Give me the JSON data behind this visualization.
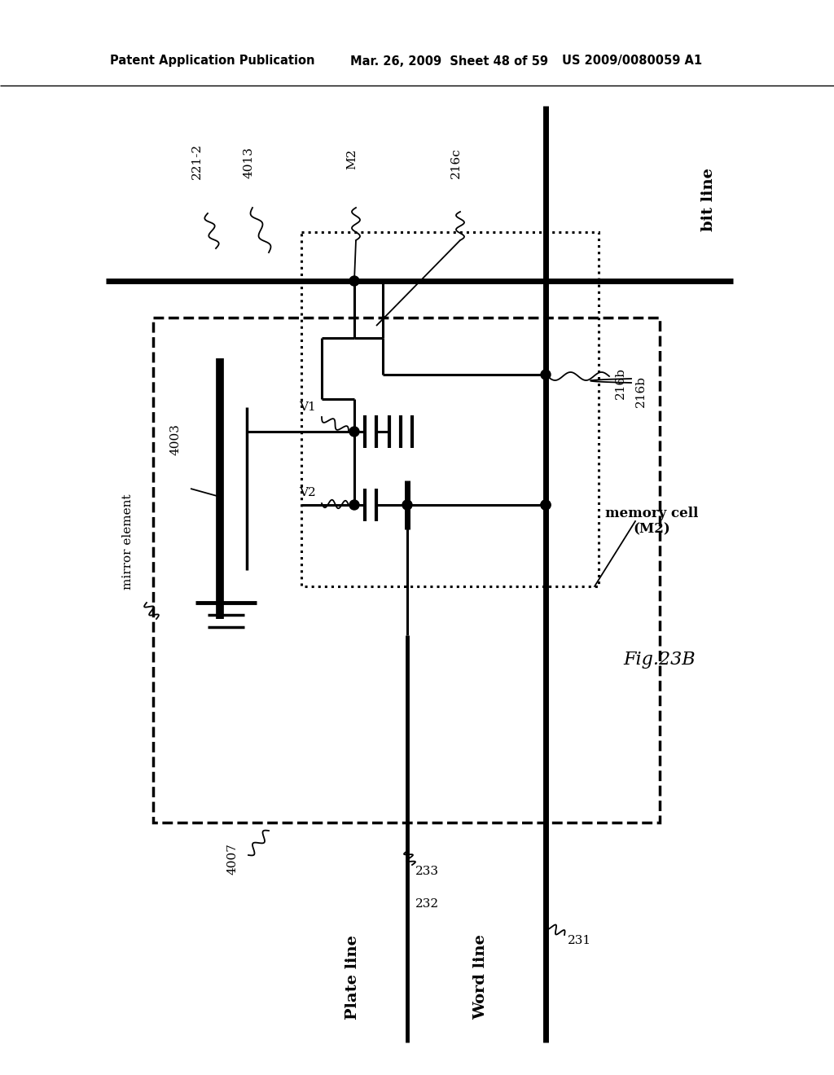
{
  "bg_color": "#ffffff",
  "header_left": "Patent Application Publication",
  "header_mid": "Mar. 26, 2009  Sheet 48 of 59",
  "header_right": "US 2009/0080059 A1",
  "fig_label": "Fig.23B"
}
